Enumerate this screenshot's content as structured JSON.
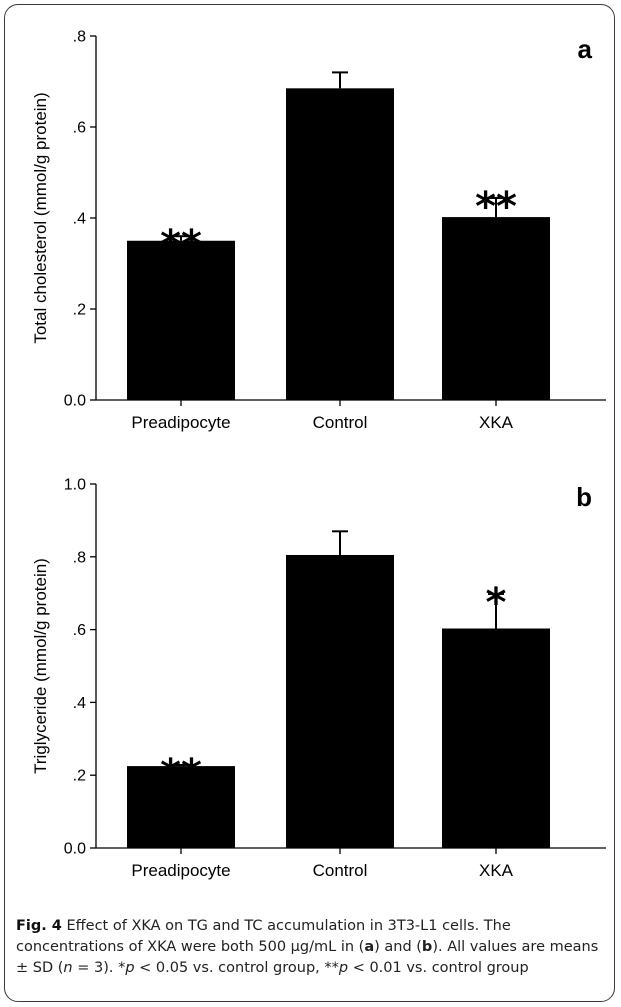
{
  "chart_data": [
    {
      "type": "bar",
      "panel_label": "a",
      "ylabel": "Total cholesterol (mmol/g protein)",
      "categories": [
        "Preadipocyte",
        "Control",
        "XKA"
      ],
      "values": [
        0.35,
        0.685,
        0.402
      ],
      "errors": [
        0.01,
        0.035,
        0.042
      ],
      "significance": [
        "**",
        "",
        "**"
      ],
      "ylim": [
        0,
        0.8
      ],
      "yticks": [
        0,
        0.2,
        0.4,
        0.6,
        0.8
      ],
      "ytick_labels": [
        "0.0",
        ".2",
        ".4",
        ".6",
        ".8"
      ],
      "grid": false,
      "bar_color": "#000000"
    },
    {
      "type": "bar",
      "panel_label": "b",
      "ylabel": "Triglyceride (mmol/g protein)",
      "categories": [
        "Preadipocyte",
        "Control",
        "XKA"
      ],
      "values": [
        0.225,
        0.805,
        0.603
      ],
      "errors": [
        0.003,
        0.065,
        0.095
      ],
      "significance": [
        "**",
        "",
        "*"
      ],
      "ylim": [
        0,
        1.0
      ],
      "yticks": [
        0,
        0.2,
        0.4,
        0.6,
        0.8,
        1.0
      ],
      "ytick_labels": [
        "0.0",
        ".2",
        ".4",
        ".6",
        ".8",
        "1.0"
      ],
      "grid": false,
      "bar_color": "#000000"
    }
  ],
  "caption": {
    "fig_label": "Fig. 4",
    "text_1": " Effect of XKA on TG and TC accumulation in 3T3-L1 cells. The concentrations of XKA were both 500 μg/mL in (",
    "ref_a": "a",
    "text_2": ") and (",
    "ref_b": "b",
    "text_3": "). All values are means ± SD (",
    "n_var": "n",
    "text_4": " = 3). *",
    "p_var_1": "p",
    "text_5": " < 0.05 vs. control group, **",
    "p_var_2": "p",
    "text_6": " < 0.01 vs. control group"
  }
}
